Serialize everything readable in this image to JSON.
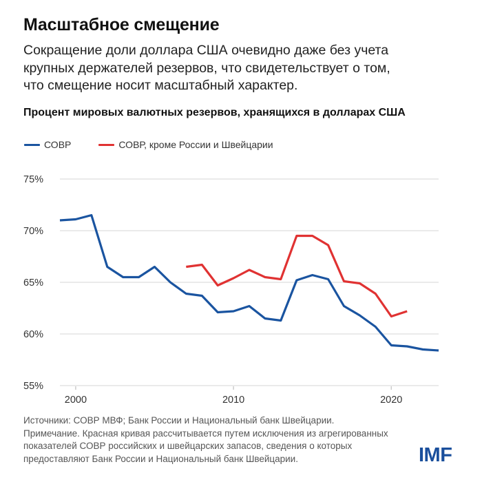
{
  "header": {
    "title": "Масштабное смещение",
    "subtitle_lines": [
      "Сокращение доли доллара США очевидно даже без учета",
      "крупных держателей резервов, что свидетельствует о том,",
      "что смещение носит масштабный характер."
    ]
  },
  "footer": {
    "lines": [
      "Источники: СОВР МВФ; Банк России и Национальный банк Швейцарии.",
      "Примечание. Красная кривая рассчитывается путем исключения из агрегированных",
      "показателей СОВР российских и швейцарских запасов, сведения о которых",
      "предоставляют Банк России и Национальный банк Швейцарии."
    ],
    "logo": "IMF"
  },
  "colors": {
    "series_blue": "#1a54a0",
    "series_red": "#e03232",
    "grid": "#e3e3e3",
    "logo": "#1a4f9c"
  },
  "chart_data": {
    "type": "line",
    "title": "Процент мировых валютных резервов, хранящихся в долларах США",
    "xlabel": "",
    "ylabel": "",
    "xlim": [
      1999,
      2023
    ],
    "ylim": [
      55,
      75
    ],
    "grid": true,
    "legend_position": "top-left",
    "x_ticks": [
      2000,
      2010,
      2020
    ],
    "x_tick_labels": [
      "2000",
      "2010",
      "2020"
    ],
    "y_ticks": [
      55,
      60,
      65,
      70,
      75
    ],
    "y_tick_labels": [
      "55%",
      "60%",
      "65%",
      "70%",
      "75%"
    ],
    "series": [
      {
        "name": "СОВР",
        "color": "#1a54a0",
        "x": [
          1999,
          2000,
          2001,
          2002,
          2003,
          2004,
          2005,
          2006,
          2007,
          2008,
          2009,
          2010,
          2011,
          2012,
          2013,
          2014,
          2015,
          2016,
          2017,
          2018,
          2019,
          2020,
          2021,
          2022,
          2023
        ],
        "values": [
          71.0,
          71.1,
          71.5,
          66.5,
          65.5,
          65.5,
          66.5,
          65.0,
          63.9,
          63.7,
          62.1,
          62.2,
          62.7,
          61.5,
          61.3,
          65.2,
          65.7,
          65.3,
          62.7,
          61.8,
          60.7,
          58.9,
          58.8,
          58.5,
          58.4
        ]
      },
      {
        "name": "СОВР, кроме России и Швейцарии",
        "color": "#e03232",
        "x": [
          2007,
          2008,
          2009,
          2010,
          2011,
          2012,
          2013,
          2014,
          2015,
          2016,
          2017,
          2018,
          2019,
          2020,
          2021
        ],
        "values": [
          66.5,
          66.7,
          64.7,
          65.4,
          66.2,
          65.5,
          65.3,
          69.5,
          69.5,
          68.6,
          65.1,
          64.9,
          63.9,
          61.7,
          62.2
        ]
      }
    ]
  }
}
